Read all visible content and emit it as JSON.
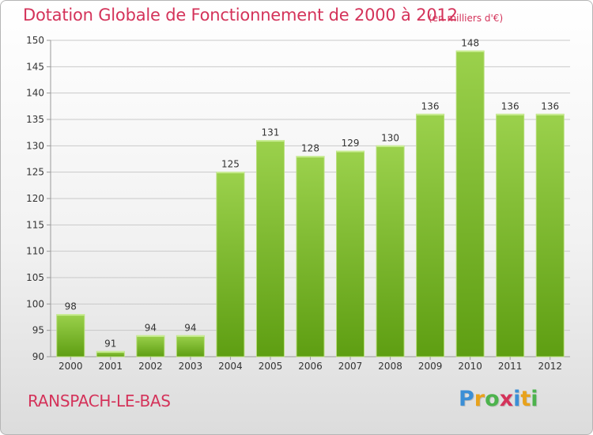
{
  "header": {
    "title": "Dotation Globale de Fonctionnement de 2000 à 2012",
    "unit": "(en milliers d'€)"
  },
  "footer": {
    "commune": "RANSPACH-LE-BAS",
    "brand_letters": [
      "P",
      "r",
      "o",
      "x",
      "i",
      "t",
      "i"
    ],
    "brand_colors": [
      "#3b8fd6",
      "#e8a21c",
      "#4db34d",
      "#d4335a",
      "#3b8fd6",
      "#e8a21c",
      "#4db34d"
    ]
  },
  "colors": {
    "title": "#d4335a",
    "bar_light": "#9bd14c",
    "bar_dark": "#5e9e12",
    "grid": "#c9c9c9"
  },
  "chart_data": {
    "type": "bar",
    "categories": [
      "2000",
      "2001",
      "2002",
      "2003",
      "2004",
      "2005",
      "2006",
      "2007",
      "2008",
      "2009",
      "2010",
      "2011",
      "2012"
    ],
    "values": [
      98,
      91,
      94,
      94,
      125,
      131,
      128,
      129,
      130,
      136,
      148,
      136,
      136
    ],
    "ylim": [
      90,
      150
    ],
    "yticks": [
      90,
      95,
      100,
      105,
      110,
      115,
      120,
      125,
      130,
      135,
      140,
      145,
      150
    ],
    "grid": true
  }
}
